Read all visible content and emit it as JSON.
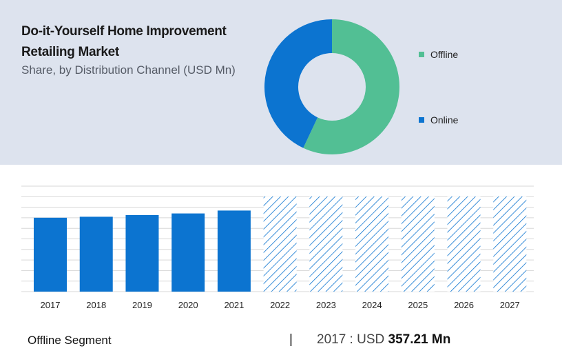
{
  "header": {
    "title": "Do-it-Yourself Home Improvement Retailing Market",
    "subtitle": "Share, by Distribution Channel (USD Mn)"
  },
  "colors": {
    "panel_bg": "#dde3ee",
    "offline": "#52bf94",
    "online": "#0c74d0",
    "bar": "#0c74d0",
    "hatch": "#0c74d0",
    "grid": "#d7d7d7"
  },
  "chart_data": [
    {
      "type": "pie",
      "variant": "donut",
      "labels": [
        "Offline",
        "Online"
      ],
      "values": [
        57,
        43
      ],
      "legend_position": "right"
    },
    {
      "type": "bar",
      "categories": [
        "2017",
        "2018",
        "2019",
        "2020",
        "2021",
        "2022",
        "2023",
        "2024",
        "2025",
        "2026",
        "2027"
      ],
      "values": [
        357.21,
        362,
        370,
        378,
        392,
        460,
        460,
        460,
        460,
        460,
        460
      ],
      "forecast_from_index": 5,
      "ylim": [
        0,
        510
      ],
      "grid": true
    }
  ],
  "footer": {
    "segment_label": "Offline Segment",
    "separator": "|",
    "year_prefix": "2017 : USD",
    "value_text": "357.21 Mn"
  }
}
